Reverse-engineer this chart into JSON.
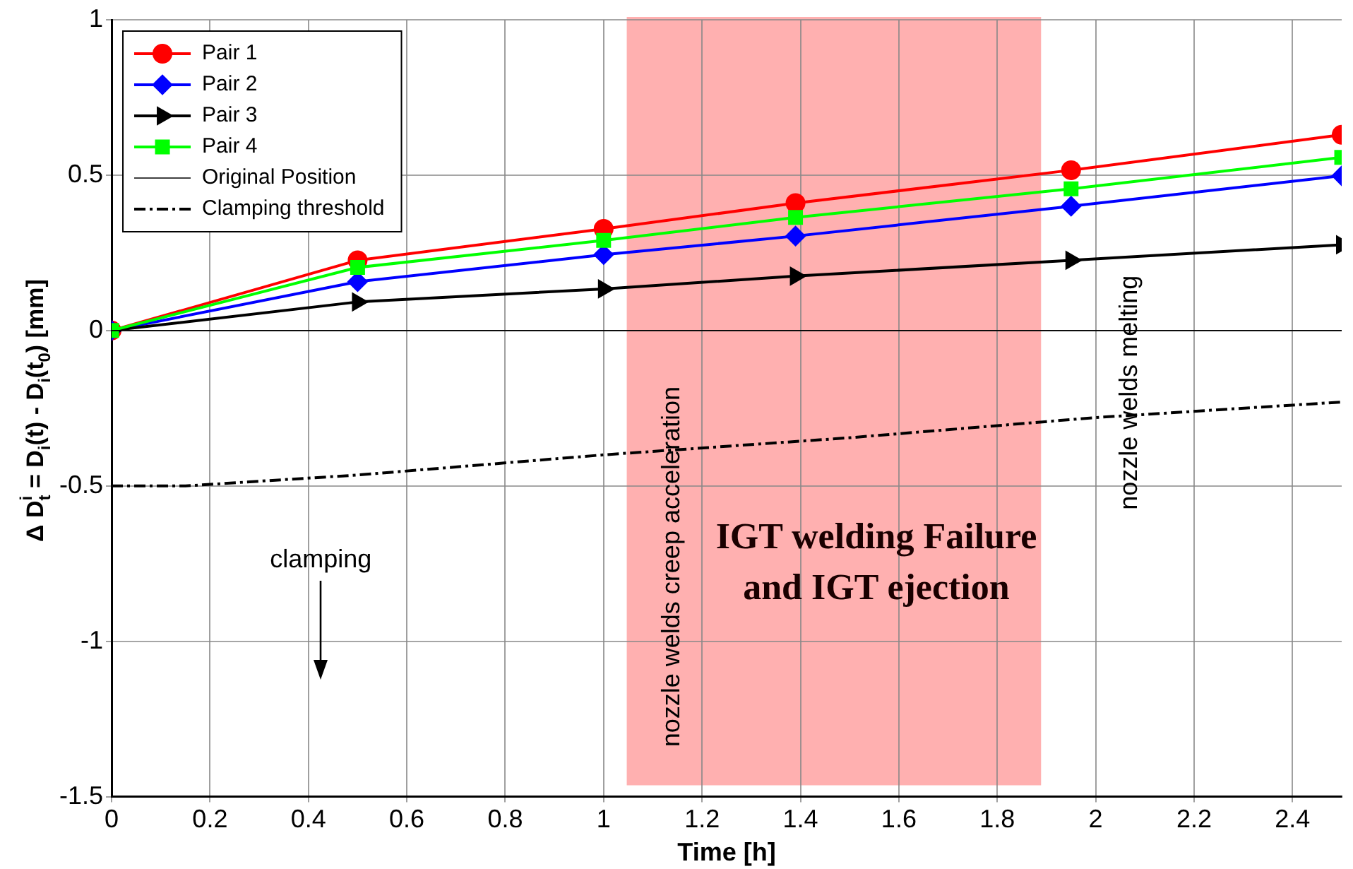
{
  "chart_data": {
    "type": "line",
    "xlabel": "Time [h]",
    "ylabel": "Δ D$^{i}$$_{t}$ = D$_{i}$(t) - D$_{i}$(t$_{0}$) [mm]",
    "x": [
      0,
      0.5,
      1,
      1.39,
      1.95,
      2.5
    ],
    "series": [
      {
        "name": "Pair 1",
        "color": "#ff0000",
        "marker": "circle",
        "values": [
          0,
          0.226,
          0.327,
          0.41,
          0.516,
          0.63
        ]
      },
      {
        "name": "Pair 2",
        "color": "#0000ff",
        "marker": "diamond",
        "values": [
          0,
          0.157,
          0.244,
          0.304,
          0.4,
          0.498
        ]
      },
      {
        "name": "Pair 3",
        "color": "#000000",
        "marker": "triangle",
        "values": [
          0,
          0.092,
          0.134,
          0.175,
          0.226,
          0.276
        ]
      },
      {
        "name": "Pair 4",
        "color": "#00ff00",
        "marker": "square",
        "values": [
          0,
          0.203,
          0.29,
          0.364,
          0.456,
          0.557
        ]
      },
      {
        "name": "Original Position",
        "color": "#000000",
        "marker": "none",
        "x": [
          0,
          2.5
        ],
        "values": [
          0,
          0
        ]
      },
      {
        "name": "Clamping threshold",
        "color": "#000000",
        "marker": "none",
        "line_style": "dashdot",
        "x": [
          0,
          0.15,
          0.5,
          1,
          1.5,
          2,
          2.5
        ],
        "values": [
          -0.5,
          -0.5,
          -0.465,
          -0.4,
          -0.345,
          -0.28,
          -0.23
        ]
      }
    ],
    "bands": [
      {
        "axis": "x",
        "from": 1.047,
        "to": 1.889,
        "label": "IGT welding Failure and IGT ejection",
        "color": "#ffb0b0"
      }
    ],
    "annotations": [
      "nozzle welds creep acceleration",
      "nozzle welds melting",
      "clamping"
    ],
    "xlim": [
      0,
      2.5
    ],
    "xticks": [
      0,
      0.2,
      0.4,
      0.6,
      0.8,
      1,
      1.2,
      1.4,
      1.6,
      1.8,
      2,
      2.2,
      2.4
    ],
    "ylim": [
      -1.5,
      1
    ],
    "yticks": [
      -1.5,
      -1,
      -0.5,
      0,
      0.5,
      1
    ],
    "grid": true,
    "legend": "top left"
  }
}
